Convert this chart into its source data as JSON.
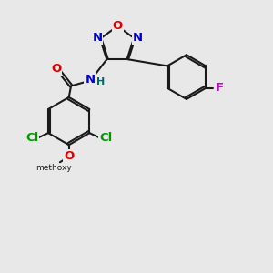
{
  "bg_color": "#e8e8e8",
  "bond_color": "#1a1a1a",
  "bond_lw": 1.5,
  "colors": {
    "O": "#dd0000",
    "N": "#0000cc",
    "Cl": "#009900",
    "F": "#cc00cc",
    "H": "#006666",
    "C": "#1a1a1a"
  },
  "fsize": 9.5,
  "fsizes": 8.0,
  "dbl_off": 0.055
}
